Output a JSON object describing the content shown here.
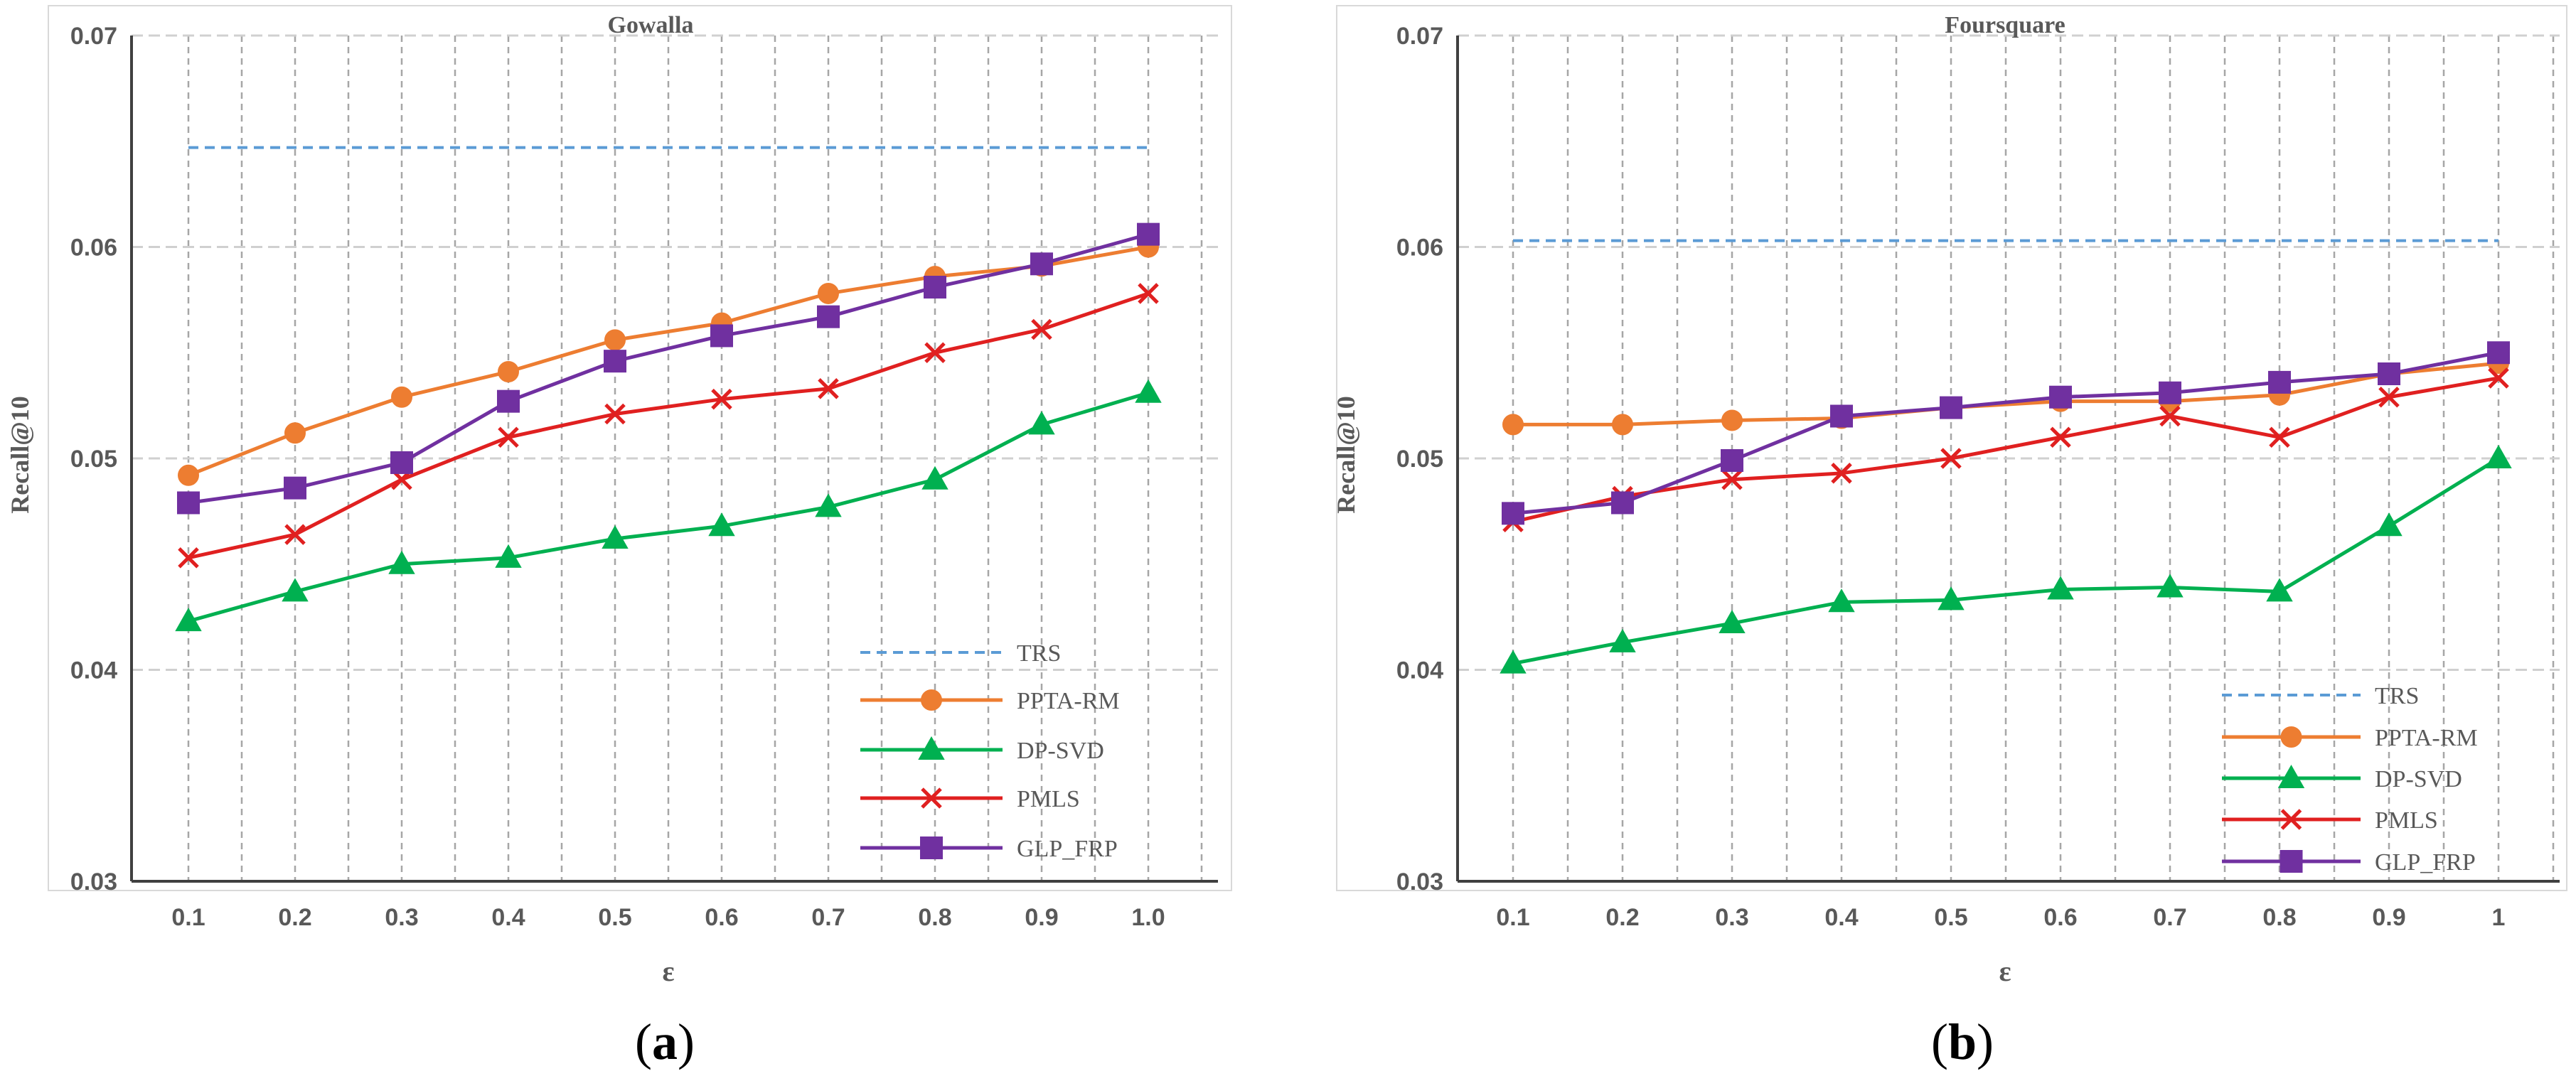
{
  "chart_data": [
    {
      "type": "line",
      "title": "Gowalla",
      "xlabel": "ε",
      "ylabel": "Recall@10",
      "caption_letter": "a",
      "categories": [
        "0.1",
        "0.2",
        "0.3",
        "0.4",
        "0.5",
        "0.6",
        "0.7",
        "0.8",
        "0.9",
        "1.0"
      ],
      "ylim": [
        0.03,
        0.07
      ],
      "yticks": [
        "0.03",
        "0.04",
        "0.05",
        "0.06",
        "0.07"
      ],
      "grid": true,
      "legend_position": "bottom-right",
      "series": [
        {
          "name": "TRS",
          "color": "#5b9bd5",
          "marker": "none",
          "dashed": true,
          "values": [
            0.0647,
            0.0647,
            0.0647,
            0.0647,
            0.0647,
            0.0647,
            0.0647,
            0.0647,
            0.0647,
            0.0647
          ]
        },
        {
          "name": "PPTA-RM",
          "color": "#ed7d31",
          "marker": "circle",
          "dashed": false,
          "values": [
            0.0492,
            0.0512,
            0.0529,
            0.0541,
            0.0556,
            0.0564,
            0.0578,
            0.0586,
            0.0591,
            0.06
          ]
        },
        {
          "name": "DP-SVD",
          "color": "#00b050",
          "marker": "triangle",
          "dashed": false,
          "values": [
            0.0423,
            0.0437,
            0.045,
            0.0453,
            0.0462,
            0.0468,
            0.0477,
            0.049,
            0.0516,
            0.0531
          ]
        },
        {
          "name": "PMLS",
          "color": "#e02020",
          "marker": "x",
          "dashed": false,
          "values": [
            0.0453,
            0.0464,
            0.049,
            0.051,
            0.0521,
            0.0528,
            0.0533,
            0.055,
            0.0561,
            0.0578
          ]
        },
        {
          "name": "GLP_FRP",
          "color": "#7030a0",
          "marker": "square",
          "dashed": false,
          "values": [
            0.0479,
            0.0486,
            0.0498,
            0.0527,
            0.0546,
            0.0558,
            0.0567,
            0.0581,
            0.0592,
            0.0606
          ]
        }
      ]
    },
    {
      "type": "line",
      "title": "Foursquare",
      "xlabel": "ε",
      "ylabel": "Recall@10",
      "caption_letter": "b",
      "categories": [
        "0.1",
        "0.2",
        "0.3",
        "0.4",
        "0.5",
        "0.6",
        "0.7",
        "0.8",
        "0.9",
        "1"
      ],
      "ylim": [
        0.03,
        0.07
      ],
      "yticks": [
        "0.03",
        "0.04",
        "0.05",
        "0.06",
        "0.07"
      ],
      "grid": true,
      "legend_position": "bottom-right",
      "series": [
        {
          "name": "TRS",
          "color": "#5b9bd5",
          "marker": "none",
          "dashed": true,
          "values": [
            0.0603,
            0.0603,
            0.0603,
            0.0603,
            0.0603,
            0.0603,
            0.0603,
            0.0603,
            0.0603,
            0.0603
          ]
        },
        {
          "name": "PPTA-RM",
          "color": "#ed7d31",
          "marker": "circle",
          "dashed": false,
          "values": [
            0.0516,
            0.0516,
            0.0518,
            0.0519,
            0.0524,
            0.0527,
            0.0527,
            0.053,
            0.054,
            0.0545
          ]
        },
        {
          "name": "DP-SVD",
          "color": "#00b050",
          "marker": "triangle",
          "dashed": false,
          "values": [
            0.0403,
            0.0413,
            0.0422,
            0.0432,
            0.0433,
            0.0438,
            0.0439,
            0.0437,
            0.0468,
            0.05
          ]
        },
        {
          "name": "PMLS",
          "color": "#e02020",
          "marker": "x",
          "dashed": false,
          "values": [
            0.047,
            0.0482,
            0.049,
            0.0493,
            0.05,
            0.051,
            0.052,
            0.051,
            0.0529,
            0.0538
          ]
        },
        {
          "name": "GLP_FRP",
          "color": "#7030a0",
          "marker": "square",
          "dashed": false,
          "values": [
            0.0474,
            0.0479,
            0.0499,
            0.052,
            0.0524,
            0.0529,
            0.0531,
            0.0536,
            0.054,
            0.055
          ]
        }
      ]
    }
  ]
}
